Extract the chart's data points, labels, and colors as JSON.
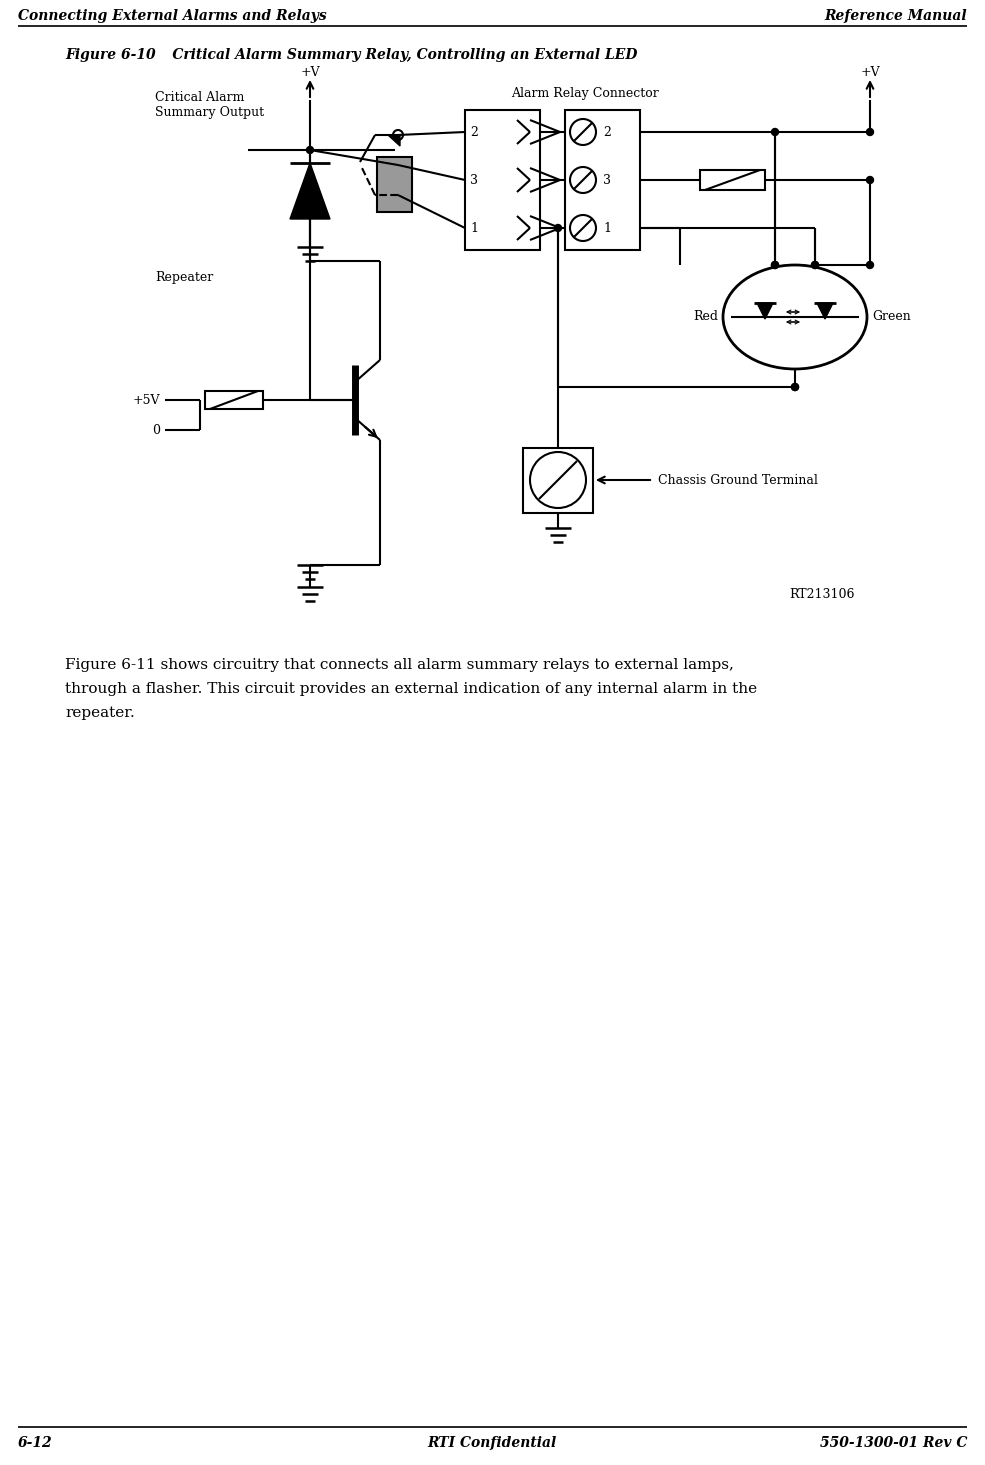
{
  "title_left": "Connecting External Alarms and Relays",
  "title_right": "Reference Manual",
  "footer_left": "6-12",
  "footer_center": "RTI Confidential",
  "footer_right": "550-1300-01 Rev C",
  "figure_label": "Figure 6-10",
  "figure_caption": "     Critical Alarm Summary Relay, Controlling an External LED",
  "label_critical_alarm": "Critical Alarm\nSummary Output",
  "label_repeater": "Repeater",
  "label_plus_v_left": "+V",
  "label_plus_v_right": "+V",
  "label_alarm_relay": "Alarm Relay Connector",
  "label_5v": "+5V",
  "label_0": "0",
  "label_red": "Red",
  "label_green": "Green",
  "label_chassis": "Chassis Ground Terminal",
  "label_rt": "RT213106",
  "body_text_1": "Figure 6-11 shows circuitry that connects all alarm summary relays to external lamps,",
  "body_text_2": "through a flasher. This circuit provides an external indication of any internal alarm in the",
  "body_text_3": "repeater.",
  "bg_color": "#ffffff",
  "line_color": "#000000"
}
